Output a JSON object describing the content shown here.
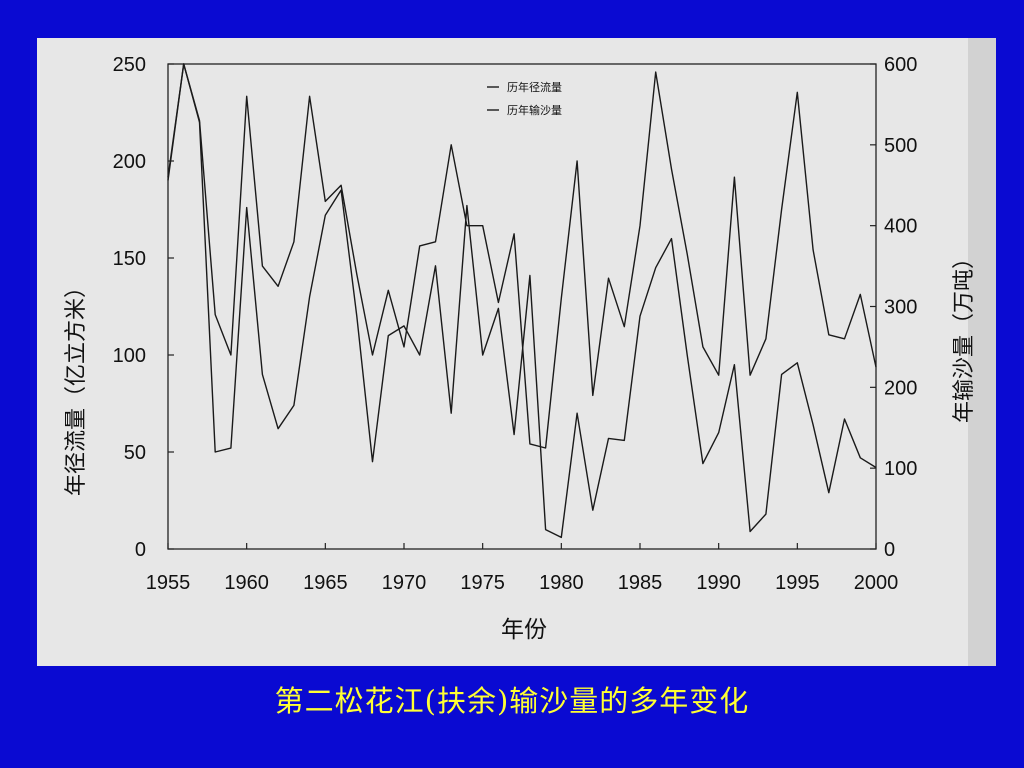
{
  "slide": {
    "caption": "第二松花江(扶余)输沙量的多年变化",
    "background_color": "#0a0ad2",
    "caption_color": "#ffff33"
  },
  "chart_data": {
    "type": "line",
    "title": "",
    "xlabel": "年份",
    "ylabel_left": "年径流量（亿立方米）",
    "ylabel_right": "年输沙量（万吨）",
    "xlim": [
      1955,
      2000
    ],
    "ylim_left": [
      0,
      250
    ],
    "ylim_right": [
      0,
      600
    ],
    "x_ticks": [
      1955,
      1960,
      1965,
      1970,
      1975,
      1980,
      1985,
      1990,
      1995,
      2000
    ],
    "y_ticks_left": [
      0,
      50,
      100,
      150,
      200,
      250
    ],
    "y_ticks_right": [
      0,
      100,
      200,
      300,
      400,
      500,
      600
    ],
    "grid": false,
    "legend_position": "top-center",
    "x": [
      1955,
      1956,
      1957,
      1958,
      1959,
      1960,
      1961,
      1962,
      1963,
      1964,
      1965,
      1966,
      1967,
      1968,
      1969,
      1970,
      1971,
      1972,
      1973,
      1974,
      1975,
      1976,
      1977,
      1978,
      1979,
      1980,
      1981,
      1982,
      1983,
      1984,
      1985,
      1986,
      1987,
      1988,
      1989,
      1990,
      1991,
      1992,
      1993,
      1994,
      1995,
      1996,
      1997,
      1998,
      1999,
      2000
    ],
    "series": [
      {
        "name": "历年径流量",
        "axis": "left",
        "values": [
          190,
          250,
          220,
          50,
          52,
          176,
          90,
          62,
          74,
          130,
          172,
          185,
          120,
          45,
          110,
          115,
          100,
          146,
          70,
          177,
          100,
          124,
          59,
          141,
          10,
          6,
          70,
          20,
          57,
          56,
          120,
          145,
          160,
          100,
          44,
          60,
          95,
          9,
          18,
          90,
          96,
          64,
          29,
          67,
          47,
          42
        ]
      },
      {
        "name": "历年输沙量",
        "axis": "right",
        "values": [
          460,
          600,
          530,
          290,
          240,
          560,
          350,
          325,
          380,
          560,
          430,
          450,
          340,
          240,
          320,
          250,
          375,
          380,
          500,
          400,
          400,
          305,
          390,
          130,
          125,
          310,
          480,
          190,
          335,
          275,
          400,
          590,
          470,
          365,
          250,
          215,
          460,
          215,
          260,
          420,
          565,
          370,
          265,
          260,
          315,
          225
        ]
      }
    ]
  }
}
